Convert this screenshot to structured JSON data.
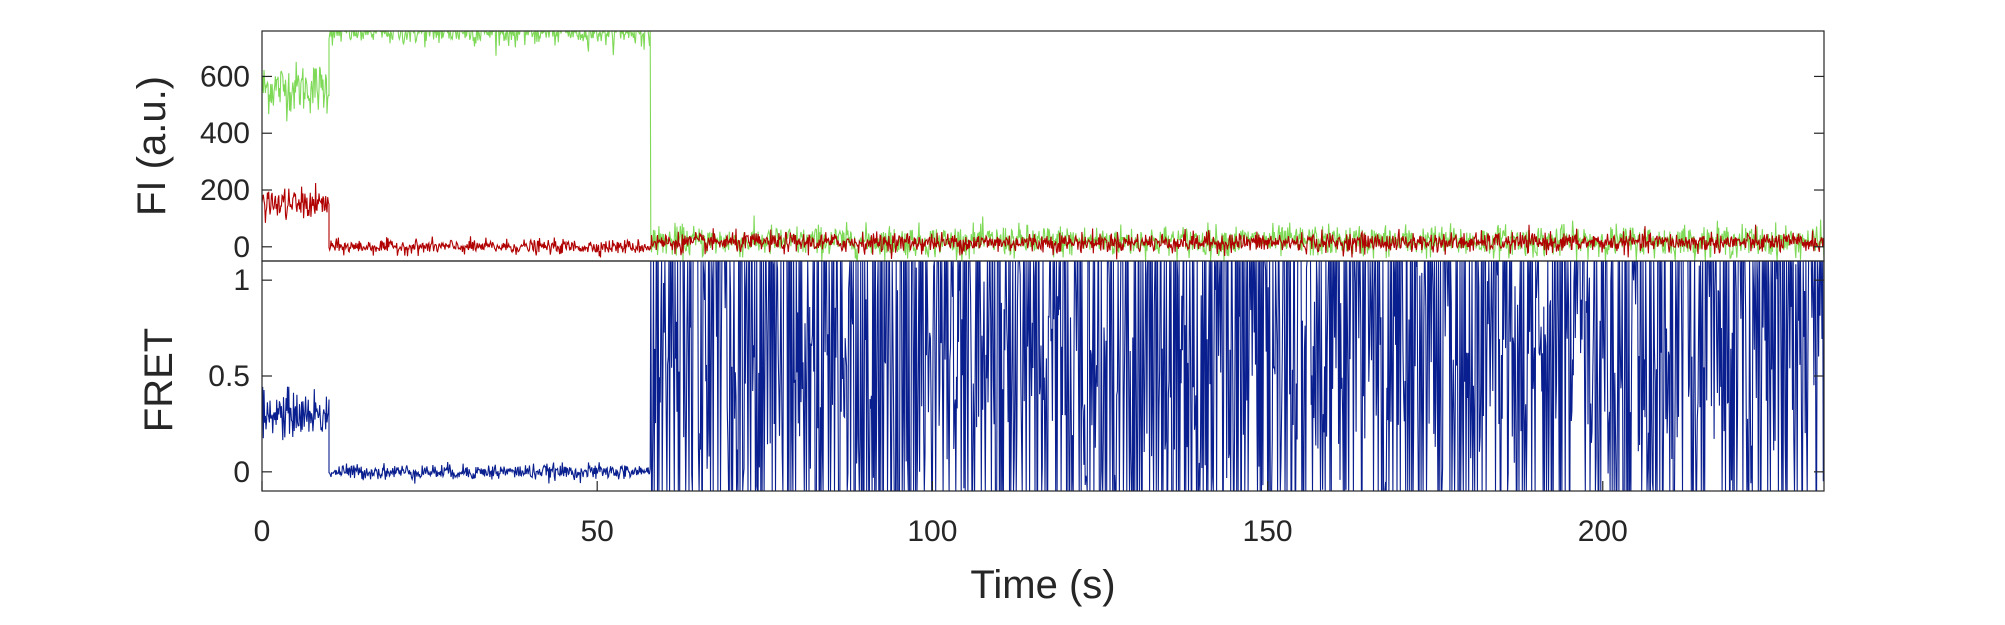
{
  "chart_data": [
    {
      "type": "line",
      "panel": "top",
      "ylabel": "FI (a.u.)",
      "xlim": [
        0,
        233
      ],
      "ylim": [
        -50,
        760
      ],
      "yticks": [
        0,
        200,
        400,
        600
      ],
      "ytick_labels": [
        "0",
        "200",
        "400",
        "600"
      ],
      "colors": {
        "green": "#7ed957",
        "red": "#b00000"
      },
      "series": [
        {
          "color": "green",
          "segments": [
            {
              "x": [
                0,
                10
              ],
              "base": 560,
              "noise": 90
            },
            {
              "x": [
                10,
                58
              ],
              "base": 760,
              "noise": 50,
              "clip_top": 760
            },
            {
              "x": [
                58,
                233
              ],
              "base": 20,
              "noise": 55
            }
          ]
        },
        {
          "color": "red",
          "segments": [
            {
              "x": [
                0,
                10
              ],
              "base": 150,
              "noise": 55
            },
            {
              "x": [
                10,
                58
              ],
              "base": 0,
              "noise": 25
            },
            {
              "x": [
                58,
                233
              ],
              "base": 15,
              "noise": 35
            }
          ]
        }
      ]
    },
    {
      "type": "line",
      "panel": "bottom",
      "ylabel": "FRET",
      "xlabel": "Time (s)",
      "xlim": [
        0,
        233
      ],
      "ylim": [
        -0.1,
        1.1
      ],
      "yticks": [
        0,
        0.5,
        1
      ],
      "ytick_labels": [
        "0",
        "0.5",
        "1"
      ],
      "xticks": [
        0,
        50,
        100,
        150,
        200
      ],
      "xtick_labels": [
        "0",
        "50",
        "100",
        "150",
        "200"
      ],
      "colors": {
        "line": "#0a1f8f"
      },
      "series": [
        {
          "color": "line",
          "segments": [
            {
              "x": [
                0,
                10
              ],
              "base": 0.3,
              "noise": 0.12
            },
            {
              "x": [
                10,
                58
              ],
              "base": 0.0,
              "noise": 0.04
            },
            {
              "x": [
                58,
                233
              ],
              "base": 0.5,
              "noise": 0.55,
              "switching": true
            }
          ]
        }
      ]
    }
  ]
}
